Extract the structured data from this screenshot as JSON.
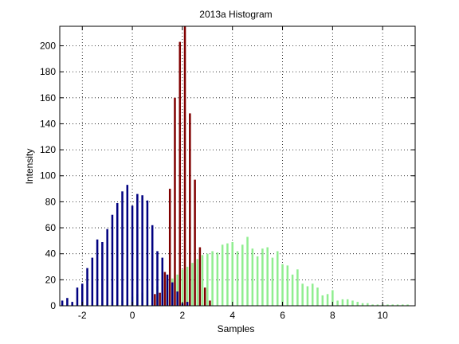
{
  "chart_data": {
    "type": "bar",
    "title": "2013a Histogram",
    "xlabel": "Samples",
    "ylabel": "Intensity",
    "xlim": [
      -2.9,
      11.3
    ],
    "ylim": [
      0,
      215
    ],
    "xticks": [
      -2,
      0,
      2,
      4,
      6,
      8,
      10
    ],
    "yticks": [
      0,
      20,
      40,
      60,
      80,
      100,
      120,
      140,
      160,
      180,
      200
    ],
    "grid": true,
    "bar_width": 0.08,
    "series": [
      {
        "color": "#000080",
        "x": [
          -2.8,
          -2.6,
          -2.4,
          -2.2,
          -2.0,
          -1.8,
          -1.6,
          -1.4,
          -1.2,
          -1.0,
          -0.8,
          -0.6,
          -0.4,
          -0.2,
          0.0,
          0.2,
          0.4,
          0.6,
          0.8,
          1.0,
          1.2,
          1.4,
          1.6,
          1.8,
          2.0,
          2.2
        ],
        "values": [
          4,
          6,
          3,
          14,
          17,
          29,
          37,
          51,
          49,
          59,
          70,
          79,
          88,
          93,
          77,
          86,
          85,
          81,
          62,
          42,
          37,
          24,
          18,
          11,
          2,
          3
        ]
      },
      {
        "color": "#800000",
        "x": [
          0.9,
          1.1,
          1.3,
          1.5,
          1.7,
          1.9,
          2.1,
          2.3,
          2.5,
          2.7,
          2.9,
          3.1
        ],
        "values": [
          9,
          10,
          26,
          90,
          160,
          203,
          215,
          148,
          97,
          45,
          14,
          4
        ]
      },
      {
        "color": "#90EE90",
        "x": [
          -1.6,
          -1.4,
          -1.2,
          -1.0,
          -0.8,
          -0.6,
          -0.4,
          -0.2,
          0.0,
          0.2,
          0.4,
          0.6,
          0.8,
          1.0,
          1.2,
          1.4,
          1.6,
          1.8,
          2.0,
          2.2,
          2.4,
          2.6,
          2.8,
          3.0,
          3.2,
          3.4,
          3.6,
          3.8,
          4.0,
          4.2,
          4.4,
          4.6,
          4.8,
          5.0,
          5.2,
          5.4,
          5.6,
          5.8,
          6.0,
          6.2,
          6.4,
          6.6,
          6.8,
          7.0,
          7.2,
          7.4,
          7.6,
          7.8,
          8.0,
          8.2,
          8.4,
          8.6,
          8.8,
          9.0,
          9.2,
          9.4,
          9.6,
          9.8,
          10.0,
          10.2,
          10.4,
          10.6,
          10.8,
          11.0
        ],
        "values": [
          1,
          1,
          2,
          2,
          3,
          3,
          4,
          5,
          7,
          9,
          10,
          12,
          13,
          15,
          17,
          19,
          21,
          24,
          28,
          30,
          33,
          36,
          39,
          40,
          42,
          41,
          47,
          48,
          49,
          42,
          47,
          53,
          44,
          38,
          44,
          45,
          37,
          42,
          32,
          31,
          24,
          28,
          17,
          15,
          17,
          14,
          8,
          9,
          12,
          4,
          5,
          5,
          4,
          3,
          2,
          2,
          1,
          1,
          1,
          1,
          1,
          1,
          1,
          1
        ]
      }
    ]
  }
}
